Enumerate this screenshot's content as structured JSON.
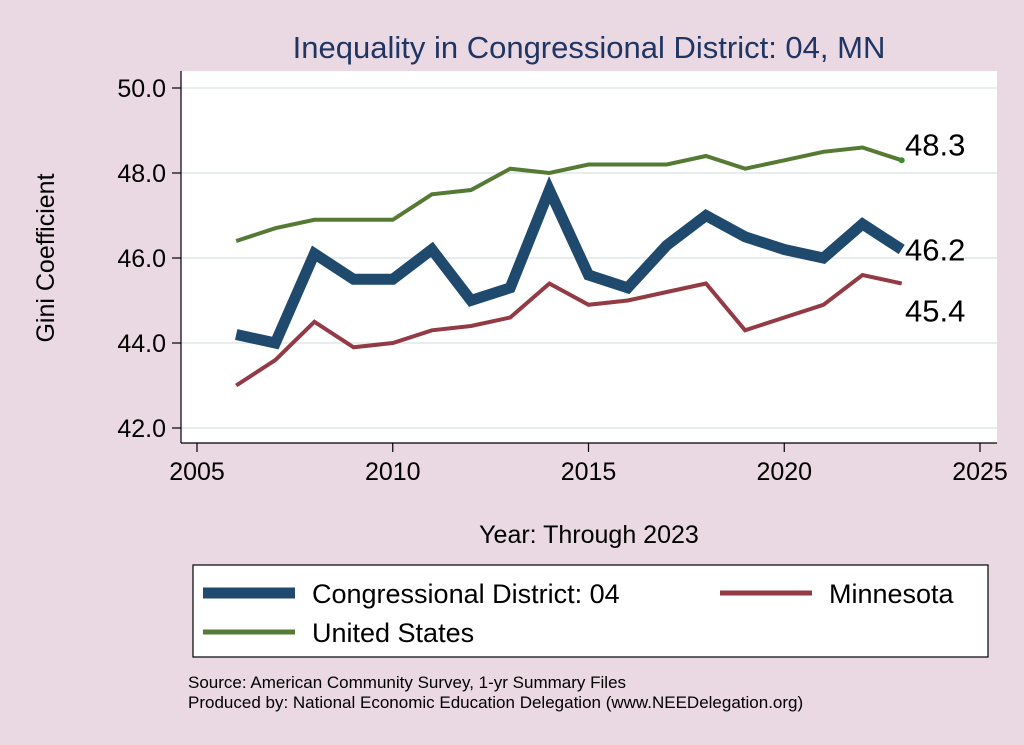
{
  "chart_data": {
    "type": "line",
    "title": "Inequality in Congressional District:  04, MN",
    "xlabel": "Year: Through 2023",
    "ylabel": "Gini Coefficient",
    "xlim": [
      2005,
      2025
    ],
    "ylim": [
      42.0,
      50.0
    ],
    "xticks": [
      "2005",
      "2010",
      "2015",
      "2020",
      "2025"
    ],
    "yticks": [
      "42.0",
      "44.0",
      "46.0",
      "48.0",
      "50.0"
    ],
    "x": [
      2006,
      2007,
      2008,
      2009,
      2010,
      2011,
      2012,
      2013,
      2014,
      2015,
      2016,
      2017,
      2018,
      2019,
      2020,
      2021,
      2022,
      2023
    ],
    "series": [
      {
        "name": "Congressional District:  04",
        "color": "#1f4a6e",
        "values": [
          44.2,
          44.0,
          46.1,
          45.5,
          45.5,
          46.2,
          45.0,
          45.3,
          47.6,
          45.6,
          45.3,
          46.3,
          47.0,
          46.5,
          46.2,
          46.0,
          46.8,
          46.2
        ],
        "end_label": "46.2"
      },
      {
        "name": "Minnesota",
        "color": "#933a44",
        "values": [
          43.0,
          43.6,
          44.5,
          43.9,
          44.0,
          44.3,
          44.4,
          44.6,
          45.4,
          44.9,
          45.0,
          45.2,
          45.4,
          44.3,
          44.6,
          44.9,
          45.6,
          45.4
        ],
        "end_label": "45.4"
      },
      {
        "name": "United States",
        "color": "#557a34",
        "values": [
          46.4,
          46.7,
          46.9,
          46.9,
          46.9,
          47.5,
          47.6,
          48.1,
          48.0,
          48.2,
          48.2,
          48.2,
          48.4,
          48.1,
          48.3,
          48.5,
          48.6,
          48.3
        ],
        "end_label": "48.3"
      }
    ],
    "legend": {
      "items": [
        "Congressional District:  04",
        "Minnesota",
        "United States"
      ],
      "placement": "bottom"
    },
    "source_lines": [
      "Source: American Community Survey, 1-yr Summary Files",
      "Produced by: National Economic Education Delegation (www.NEEDelegation.org)"
    ]
  }
}
